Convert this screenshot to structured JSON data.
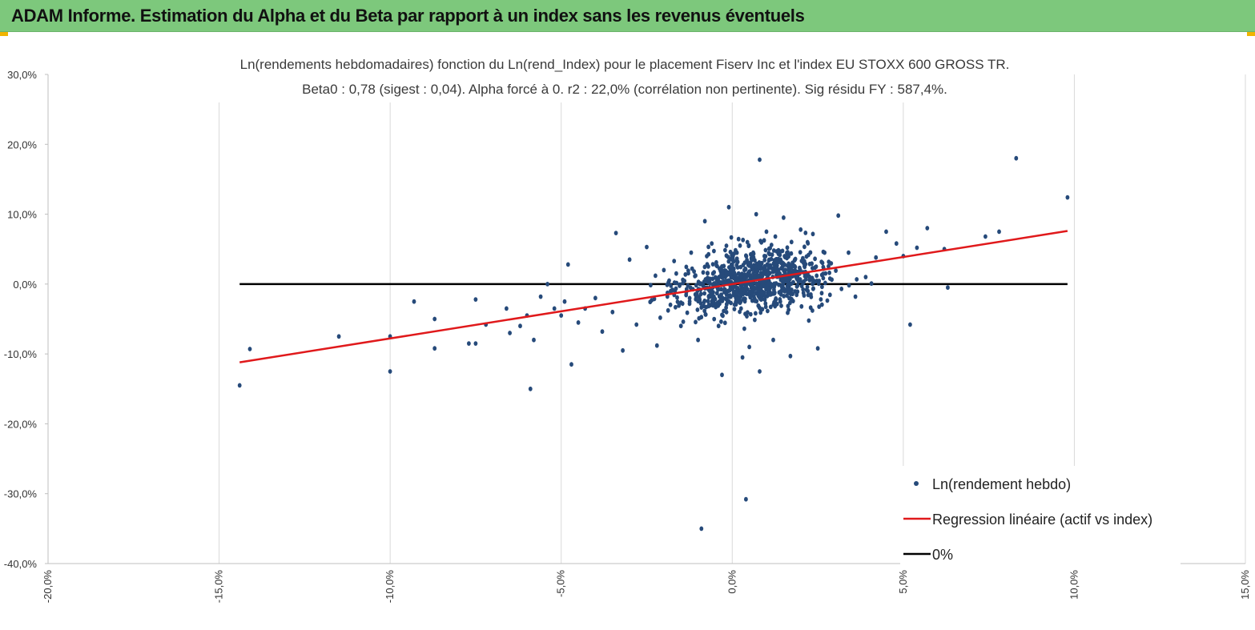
{
  "banner": {
    "title": "ADAM Informe. Estimation du Alpha et du Beta par rapport à un index sans les revenus éventuels"
  },
  "colors": {
    "banner_bg": "#7dc87c",
    "scatter": "#264a7a",
    "regression": "#e0191b",
    "zero_line": "#000000",
    "grid": "#d9d9d9",
    "accent": "#f0b400"
  },
  "chart_data": {
    "type": "scatter",
    "title": "Ln(rendements hebdomadaires) fonction du Ln(rend_Index) pour le placement Fiserv Inc et l'index EU STOXX 600 GROSS TR.",
    "subtitle": "Beta0 : 0,78 (sigest : 0,04). Alpha forcé à 0. r2 : 22,0% (corrélation non pertinente). Sig résidu FY : 587,4%.",
    "xlabel": "",
    "ylabel": "",
    "xlim": [
      -0.2,
      0.15
    ],
    "ylim": [
      -0.4,
      0.3
    ],
    "x_ticks": [
      "-20,0%",
      "-15,0%",
      "-10,0%",
      "-5,0%",
      "0,0%",
      "5,0%",
      "10,0%",
      "15,0%"
    ],
    "y_ticks": [
      "30,0%",
      "20,0%",
      "10,0%",
      "0,0%",
      "-10,0%",
      "-20,0%",
      "-30,0%",
      "-40,0%"
    ],
    "grid": "vertical",
    "legend_position": "bottom-right",
    "series": [
      {
        "name": "Ln(rendement hebdo)",
        "kind": "scatter",
        "cluster_count": 900,
        "points": [
          [
            -0.144,
            -0.145
          ],
          [
            -0.141,
            -0.093
          ],
          [
            -0.115,
            -0.075
          ],
          [
            -0.1,
            -0.075
          ],
          [
            -0.1,
            -0.125
          ],
          [
            -0.093,
            -0.025
          ],
          [
            -0.087,
            -0.05
          ],
          [
            -0.087,
            -0.092
          ],
          [
            -0.077,
            -0.085
          ],
          [
            -0.075,
            -0.085
          ],
          [
            -0.075,
            -0.022
          ],
          [
            -0.072,
            -0.058
          ],
          [
            -0.066,
            -0.035
          ],
          [
            -0.065,
            -0.07
          ],
          [
            -0.062,
            -0.06
          ],
          [
            -0.06,
            -0.045
          ],
          [
            -0.059,
            -0.15
          ],
          [
            -0.058,
            -0.08
          ],
          [
            -0.056,
            -0.018
          ],
          [
            -0.054,
            0.0
          ],
          [
            -0.052,
            -0.035
          ],
          [
            -0.05,
            -0.045
          ],
          [
            -0.049,
            -0.025
          ],
          [
            -0.048,
            0.028
          ],
          [
            -0.047,
            -0.115
          ],
          [
            -0.045,
            -0.055
          ],
          [
            -0.043,
            -0.035
          ],
          [
            -0.04,
            -0.02
          ],
          [
            -0.038,
            -0.068
          ],
          [
            -0.035,
            -0.04
          ],
          [
            -0.034,
            0.073
          ],
          [
            -0.032,
            -0.095
          ],
          [
            -0.03,
            0.035
          ],
          [
            -0.028,
            -0.058
          ],
          [
            -0.025,
            0.053
          ],
          [
            -0.022,
            -0.088
          ],
          [
            -0.02,
            0.02
          ],
          [
            -0.018,
            -0.01
          ],
          [
            -0.017,
            0.033
          ],
          [
            -0.015,
            -0.06
          ],
          [
            -0.012,
            0.045
          ],
          [
            -0.01,
            -0.08
          ],
          [
            -0.009,
            -0.35
          ],
          [
            -0.008,
            0.09
          ],
          [
            -0.006,
            0.058
          ],
          [
            -0.004,
            -0.06
          ],
          [
            -0.003,
            -0.13
          ],
          [
            -0.001,
            0.11
          ],
          [
            0.0,
            0.035
          ],
          [
            0.003,
            -0.105
          ],
          [
            0.004,
            -0.308
          ],
          [
            0.005,
            -0.09
          ],
          [
            0.007,
            0.1
          ],
          [
            0.008,
            -0.125
          ],
          [
            0.008,
            0.178
          ],
          [
            0.01,
            0.075
          ],
          [
            0.012,
            -0.08
          ],
          [
            0.015,
            0.095
          ],
          [
            0.017,
            -0.103
          ],
          [
            0.02,
            0.078
          ],
          [
            0.022,
            0.06
          ],
          [
            0.025,
            -0.092
          ],
          [
            0.027,
            0.045
          ],
          [
            0.031,
            0.098
          ],
          [
            0.034,
            0.045
          ],
          [
            0.036,
            -0.018
          ],
          [
            0.039,
            0.01
          ],
          [
            0.042,
            0.038
          ],
          [
            0.045,
            0.075
          ],
          [
            0.048,
            0.058
          ],
          [
            0.05,
            0.04
          ],
          [
            0.052,
            -0.058
          ],
          [
            0.054,
            0.052
          ],
          [
            0.057,
            0.08
          ],
          [
            0.062,
            0.05
          ],
          [
            0.063,
            -0.005
          ],
          [
            0.074,
            0.068
          ],
          [
            0.078,
            0.075
          ],
          [
            0.083,
            0.18
          ],
          [
            0.098,
            0.124
          ]
        ]
      },
      {
        "name": "Regression linéaire (actif vs index)",
        "kind": "line",
        "x": [
          -0.144,
          0.098
        ],
        "y": [
          -0.112,
          0.076
        ]
      },
      {
        "name": "0%",
        "kind": "line",
        "x": [
          -0.144,
          0.098
        ],
        "y": [
          0.0,
          0.0
        ]
      }
    ]
  }
}
